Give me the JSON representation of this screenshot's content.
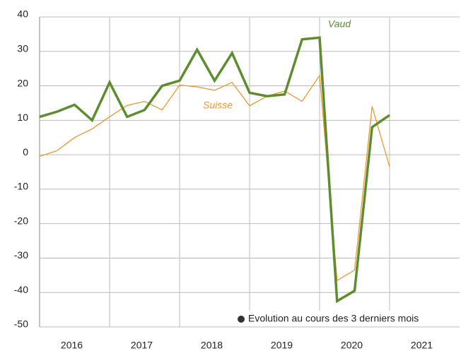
{
  "chart_data": {
    "type": "line",
    "x": [
      2016,
      2016.25,
      2016.5,
      2016.75,
      2017,
      2017.25,
      2017.5,
      2017.75,
      2018,
      2018.25,
      2018.5,
      2018.75,
      2019,
      2019.25,
      2019.5,
      2019.75,
      2020,
      2020.25,
      2020.5,
      2020.75,
      2021
    ],
    "series": [
      {
        "name": "Suisse",
        "color": "#f0962e",
        "values": [
          -0.5,
          1.2,
          5,
          7.5,
          11,
          14.3,
          15.5,
          13,
          20.2,
          19.7,
          18.7,
          21,
          14.2,
          17,
          18.5,
          15.5,
          23,
          -36.5,
          -33.5,
          14,
          -3.5
        ]
      },
      {
        "name": "Vaud",
        "color": "#5e8d2f",
        "values": [
          11,
          12.5,
          14.5,
          10,
          21,
          11,
          13,
          20,
          21.5,
          30.5,
          21.5,
          29.5,
          18,
          17,
          17.5,
          33.5,
          34,
          -42.5,
          -39.5,
          8,
          11.5
        ]
      }
    ],
    "xlim": [
      2016,
      2022
    ],
    "xticks": [
      2017,
      2018,
      2019,
      2020,
      2021
    ],
    "year_labels": [
      "2016",
      "2017",
      "2018",
      "2019",
      "2020",
      "2021"
    ],
    "ylim": [
      -50,
      40
    ],
    "yticks": [
      -50,
      -40,
      -30,
      -20,
      -10,
      0,
      10,
      20,
      30,
      40
    ],
    "grid": true,
    "note": "Evolution au cours des 3 derniers mois"
  }
}
